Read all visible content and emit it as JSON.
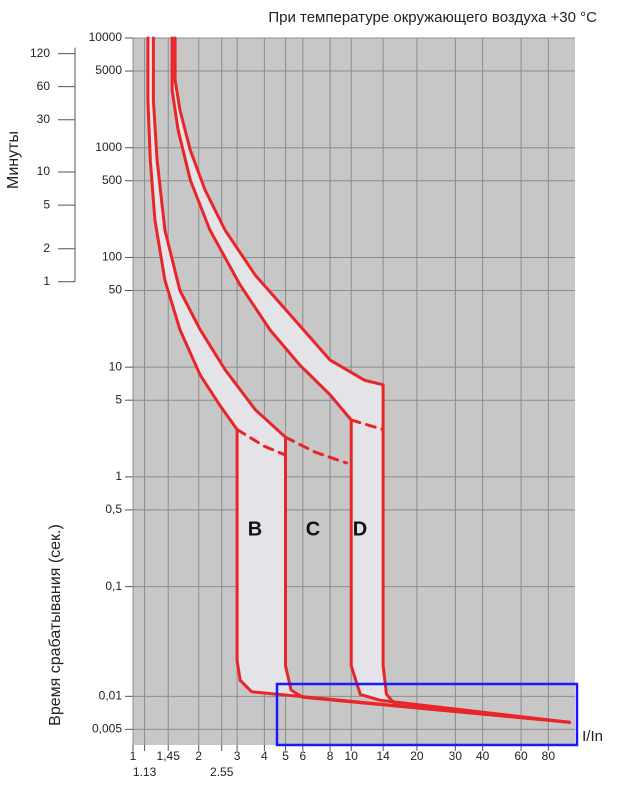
{
  "chart_data": {
    "type": "line",
    "title": "При температуре окружающего воздуха +30 °C",
    "xlabel": "I/In",
    "ylabel": "Время срабатывания (сек.)",
    "y2label": "Минуты",
    "log_x": true,
    "log_y": true,
    "grid": true,
    "xlim": [
      1,
      106
    ],
    "xticks": [
      1,
      {
        "value": 1.45,
        "label": "1,45"
      },
      2,
      3,
      4,
      5,
      6,
      8,
      10,
      14,
      20,
      30,
      40,
      60,
      80
    ],
    "xticks_lower": [
      1.13,
      2.55
    ],
    "ylim": [
      0.0036,
      10000
    ],
    "yticks": [
      10000,
      5000,
      1000,
      500,
      100,
      50,
      10,
      5,
      1,
      {
        "value": 0.5,
        "label": "0,5"
      },
      {
        "value": 0.1,
        "label": "0,1"
      },
      {
        "value": 0.01,
        "label": "0,01"
      },
      {
        "value": 0.005,
        "label": "0,005"
      }
    ],
    "y2lim": [
      6e-05,
      166.667
    ],
    "y2ticks": [
      120,
      60,
      30,
      10,
      5,
      2,
      1
    ],
    "annotations": [
      "B",
      "C",
      "D"
    ],
    "series": [
      {
        "color": "#e8262a",
        "dash": false,
        "x": [
          1.17,
          1.17,
          1.2,
          1.26,
          1.4,
          1.64,
          2.03,
          2.5,
          3,
          3,
          3.1,
          3.5,
          100
        ],
        "values": [
          10000,
          2700,
          770,
          220,
          62,
          22,
          8.5,
          4.5,
          2.7,
          0.021,
          0.014,
          0.011,
          0.0058
        ]
      },
      {
        "color": "#e8262a",
        "dash": false,
        "x": [
          1.24,
          1.24,
          1.29,
          1.4,
          1.64,
          2.03,
          2.64,
          3.63,
          5,
          5,
          5.3,
          6,
          100
        ],
        "values": [
          10000,
          2700,
          770,
          178,
          50,
          22,
          9.5,
          4.1,
          2.3,
          0.019,
          0.0114,
          0.0098,
          0.0058
        ]
      },
      {
        "color": "#e8262a",
        "dash": false,
        "x": [
          1.51,
          1.51,
          1.61,
          1.83,
          2.25,
          3.1,
          4.25,
          5.83,
          8,
          10,
          10,
          11,
          13.6,
          100
        ],
        "values": [
          10000,
          3360,
          1450,
          508,
          178,
          56,
          21.8,
          10.4,
          5.6,
          3.3,
          0.019,
          0.0104,
          0.0092,
          0.0058
        ]
      },
      {
        "color": "#e8262a",
        "dash": false,
        "x": [
          1.56,
          1.56,
          1.64,
          1.83,
          2.14,
          2.64,
          3.63,
          5.25,
          8,
          11.5,
          14,
          14,
          14.5,
          16,
          100
        ],
        "values": [
          10000,
          4140,
          2210,
          950,
          411,
          178,
          69,
          30,
          11.6,
          7.6,
          6.9,
          0.019,
          0.0104,
          0.0083,
          0.0058
        ]
      },
      {
        "color": "#e8262a",
        "dash": true,
        "x": [
          3,
          4,
          5
        ],
        "values": [
          2.7,
          1.9,
          1.58
        ]
      },
      {
        "color": "#e8262a",
        "dash": true,
        "x": [
          5,
          6.84,
          9.5
        ],
        "values": [
          2.3,
          1.68,
          1.34
        ]
      },
      {
        "color": "#e8262a",
        "dash": true,
        "x": [
          10,
          14
        ],
        "values": [
          3.3,
          2.7
        ]
      }
    ]
  }
}
